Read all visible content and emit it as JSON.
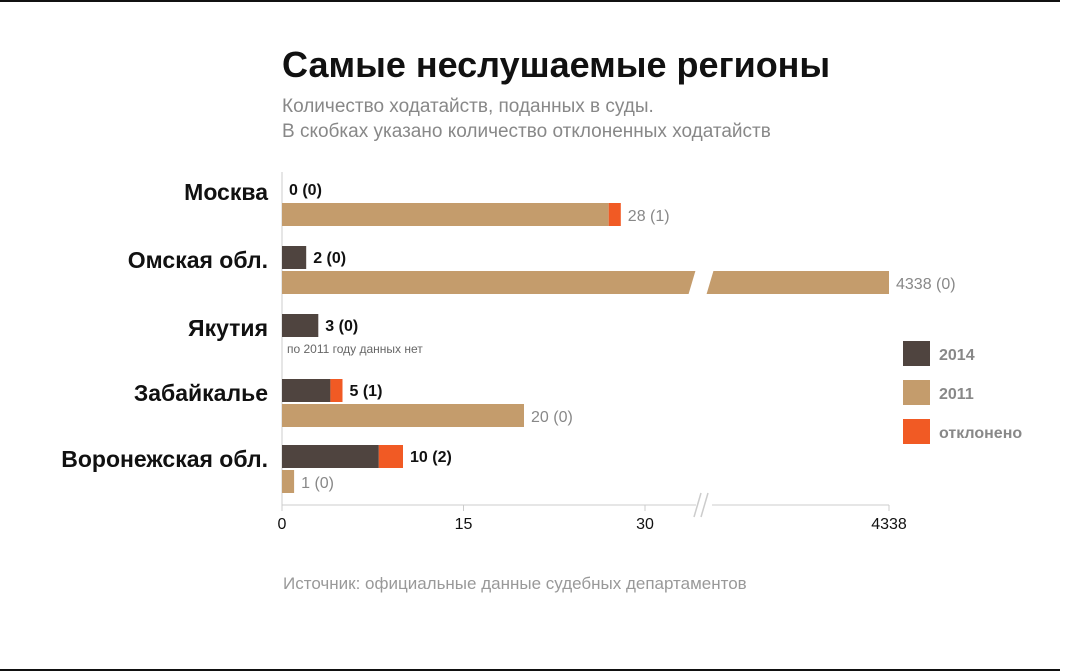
{
  "title": "Самые неслушаемые регионы",
  "subtitle_line1": "Количество ходатайств, поданных в суды.",
  "subtitle_line2": "В скобках указано количество отклоненных ходатайств",
  "source": "Источник: официальные данные судебных департаментов",
  "colors": {
    "y2014": "#4f443f",
    "y2011": "#c49c6c",
    "rejected": "#f15a24",
    "axis": "#cccccc",
    "label2014": "#111111",
    "label2011": "#888888"
  },
  "chart_data": {
    "type": "bar",
    "orientation": "horizontal",
    "axis_break": "between 30 and 4338",
    "categories": [
      "Москва",
      "Омская обл.",
      "Якутия",
      "Забайкалье",
      "Воронежская обл."
    ],
    "series": [
      {
        "name": "2014",
        "values": [
          0,
          2,
          3,
          5,
          10
        ],
        "rejected": [
          0,
          0,
          0,
          1,
          2
        ],
        "labels": [
          "0 (0)",
          "2 (0)",
          "3 (0)",
          "5 (1)",
          "10 (2)"
        ]
      },
      {
        "name": "2011",
        "values": [
          28,
          4338,
          null,
          20,
          1
        ],
        "rejected": [
          1,
          0,
          null,
          0,
          0
        ],
        "labels": [
          "28 (1)",
          "4338 (0)",
          "",
          "20 (0)",
          "1 (0)"
        ]
      }
    ],
    "notes": [
      "",
      "",
      "по 2011 году данных нет",
      "",
      ""
    ],
    "x_ticks": [
      "0",
      "15",
      "30",
      "4338"
    ],
    "xlim": [
      0,
      4338
    ],
    "legend": {
      "position": "right",
      "items": [
        "2014",
        "2011",
        "отклонено"
      ]
    }
  }
}
